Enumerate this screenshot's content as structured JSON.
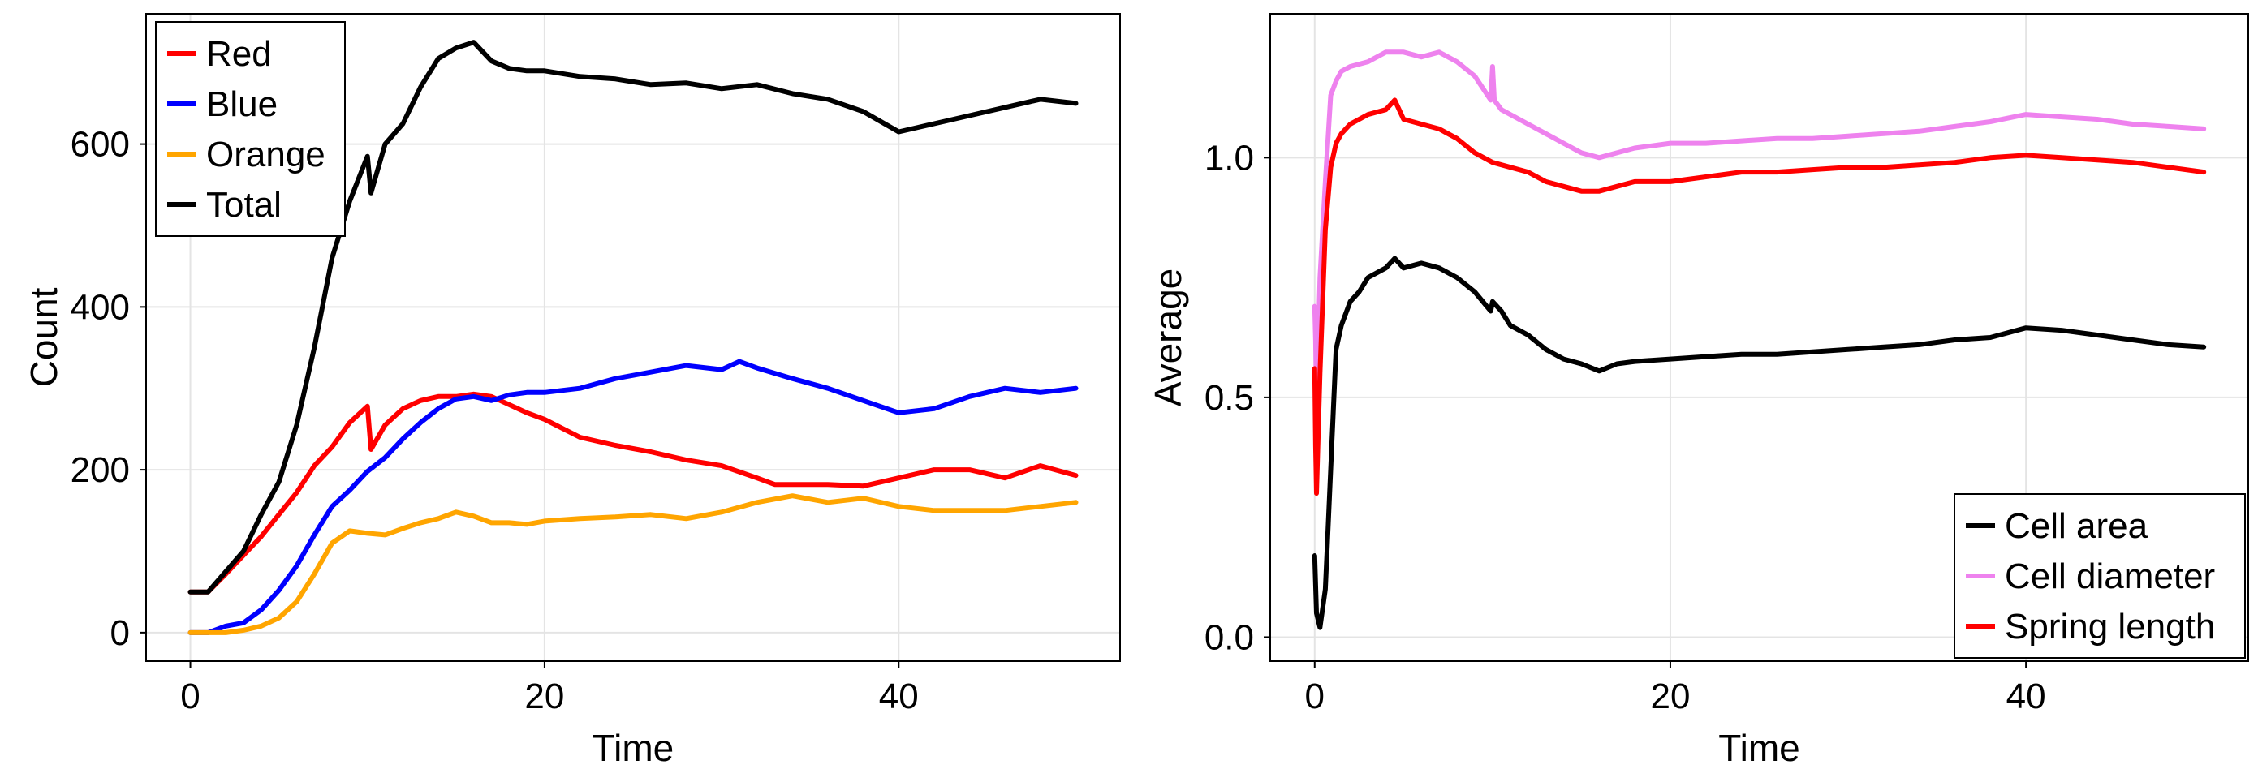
{
  "chart_data": [
    {
      "type": "line",
      "title": "",
      "xlabel": "Time",
      "ylabel": "Count",
      "xlim": [
        -2.5,
        52.5
      ],
      "ylim": [
        -35,
        760
      ],
      "xticks": [
        0,
        20,
        40
      ],
      "xtick_labels": [
        "0",
        "20",
        "40"
      ],
      "yticks": [
        0,
        200,
        400,
        600
      ],
      "ytick_labels": [
        "0",
        "200",
        "400",
        "600"
      ],
      "grid": true,
      "legend_position": "top-left",
      "series": [
        {
          "name": "Red",
          "color": "#ff0000",
          "x": [
            0,
            1,
            2,
            3,
            4,
            5,
            6,
            7,
            8,
            9,
            10,
            10.2,
            11,
            12,
            13,
            14,
            15,
            16,
            17,
            18,
            19,
            20,
            22,
            24,
            26,
            28,
            30,
            32,
            33,
            34,
            36,
            38,
            40,
            42,
            44,
            46,
            48,
            50
          ],
          "y": [
            50,
            50,
            72,
            95,
            118,
            145,
            172,
            205,
            228,
            258,
            278,
            225,
            255,
            275,
            285,
            290,
            290,
            293,
            290,
            280,
            270,
            262,
            240,
            230,
            222,
            212,
            205,
            190,
            182,
            182,
            182,
            180,
            190,
            200,
            200,
            190,
            205,
            193
          ]
        },
        {
          "name": "Blue",
          "color": "#0000ff",
          "x": [
            0,
            1,
            2,
            3,
            4,
            5,
            6,
            7,
            8,
            9,
            10,
            11,
            12,
            13,
            14,
            15,
            16,
            17,
            18,
            19,
            20,
            22,
            24,
            26,
            28,
            30,
            31,
            32,
            34,
            36,
            38,
            40,
            42,
            44,
            46,
            48,
            50
          ],
          "y": [
            0,
            0,
            8,
            12,
            28,
            52,
            82,
            120,
            155,
            175,
            198,
            215,
            238,
            258,
            275,
            287,
            290,
            285,
            292,
            295,
            295,
            300,
            312,
            320,
            328,
            323,
            333,
            325,
            312,
            300,
            285,
            270,
            275,
            290,
            300,
            295,
            300
          ]
        },
        {
          "name": "Orange",
          "color": "#ffa500",
          "x": [
            0,
            1,
            2,
            3,
            4,
            5,
            6,
            7,
            8,
            9,
            10,
            11,
            12,
            13,
            14,
            15,
            16,
            17,
            18,
            19,
            20,
            22,
            24,
            26,
            28,
            30,
            32,
            34,
            36,
            38,
            40,
            42,
            44,
            46,
            48,
            50
          ],
          "y": [
            0,
            0,
            0,
            3,
            8,
            18,
            38,
            72,
            110,
            125,
            122,
            120,
            128,
            135,
            140,
            148,
            143,
            135,
            135,
            133,
            137,
            140,
            142,
            145,
            140,
            148,
            160,
            168,
            160,
            165,
            155,
            150,
            150,
            150,
            155,
            160
          ]
        },
        {
          "name": "Total",
          "color": "#000000",
          "x": [
            0,
            1,
            2,
            3,
            4,
            5,
            6,
            7,
            8,
            9,
            10,
            10.2,
            11,
            12,
            13,
            14,
            15,
            16,
            17,
            18,
            19,
            20,
            22,
            24,
            26,
            28,
            30,
            32,
            34,
            36,
            38,
            40,
            41,
            42,
            44,
            46,
            48,
            50
          ],
          "y": [
            50,
            50,
            75,
            100,
            145,
            185,
            255,
            350,
            460,
            530,
            585,
            540,
            600,
            625,
            670,
            705,
            718,
            725,
            702,
            693,
            690,
            690,
            683,
            680,
            673,
            675,
            668,
            673,
            662,
            655,
            640,
            615,
            620,
            625,
            635,
            645,
            655,
            650
          ]
        }
      ]
    },
    {
      "type": "line",
      "title": "",
      "xlabel": "Time",
      "ylabel": "Average",
      "xlim": [
        -2.5,
        52.5
      ],
      "ylim": [
        -0.05,
        1.3
      ],
      "xticks": [
        0,
        20,
        40
      ],
      "xtick_labels": [
        "0",
        "20",
        "40"
      ],
      "yticks": [
        0.0,
        0.5,
        1.0
      ],
      "ytick_labels": [
        "0.0",
        "0.5",
        "1.0"
      ],
      "grid": true,
      "legend_position": "bottom-right",
      "series": [
        {
          "name": "Cell area",
          "color": "#000000",
          "x": [
            0,
            0.1,
            0.3,
            0.6,
            0.9,
            1.2,
            1.5,
            2,
            2.5,
            3,
            3.5,
            4,
            4.5,
            5,
            6,
            7,
            8,
            9,
            9.9,
            10,
            10.5,
            11,
            12,
            13,
            14,
            15,
            16,
            17,
            18,
            20,
            22,
            24,
            26,
            28,
            30,
            32,
            34,
            36,
            38,
            40,
            42,
            44,
            46,
            48,
            50
          ],
          "y": [
            0.17,
            0.05,
            0.02,
            0.1,
            0.35,
            0.6,
            0.65,
            0.7,
            0.72,
            0.75,
            0.76,
            0.77,
            0.79,
            0.77,
            0.78,
            0.77,
            0.75,
            0.72,
            0.68,
            0.7,
            0.68,
            0.65,
            0.63,
            0.6,
            0.58,
            0.57,
            0.555,
            0.57,
            0.575,
            0.58,
            0.585,
            0.59,
            0.59,
            0.595,
            0.6,
            0.605,
            0.61,
            0.62,
            0.625,
            0.645,
            0.64,
            0.63,
            0.62,
            0.61,
            0.605
          ]
        },
        {
          "name": "Cell diameter",
          "color": "#ee82ee",
          "x": [
            0,
            0.05,
            0.1,
            0.3,
            0.6,
            0.9,
            1.2,
            1.5,
            2,
            3,
            4,
            5,
            6,
            7,
            8,
            9,
            9.9,
            10,
            10.1,
            10.5,
            11,
            12,
            13,
            14,
            15,
            16,
            17,
            18,
            20,
            22,
            24,
            26,
            28,
            30,
            32,
            34,
            36,
            38,
            40,
            42,
            44,
            46,
            48,
            50
          ],
          "y": [
            0.69,
            0.62,
            0.48,
            0.75,
            0.95,
            1.13,
            1.16,
            1.18,
            1.19,
            1.2,
            1.22,
            1.22,
            1.21,
            1.22,
            1.2,
            1.17,
            1.12,
            1.19,
            1.12,
            1.1,
            1.09,
            1.07,
            1.05,
            1.03,
            1.01,
            1.0,
            1.01,
            1.02,
            1.03,
            1.03,
            1.035,
            1.04,
            1.04,
            1.045,
            1.05,
            1.055,
            1.065,
            1.075,
            1.09,
            1.085,
            1.08,
            1.07,
            1.065,
            1.06
          ]
        },
        {
          "name": "Spring length",
          "color": "#ff0000",
          "x": [
            0,
            0.05,
            0.1,
            0.3,
            0.6,
            0.9,
            1.2,
            1.5,
            2,
            3,
            4,
            4.5,
            5,
            6,
            7,
            8,
            9,
            10,
            11,
            12,
            13,
            14,
            15,
            16,
            18,
            20,
            22,
            24,
            26,
            28,
            30,
            32,
            34,
            36,
            38,
            40,
            42,
            44,
            46,
            48,
            50
          ],
          "y": [
            0.56,
            0.4,
            0.3,
            0.55,
            0.85,
            0.98,
            1.03,
            1.05,
            1.07,
            1.09,
            1.1,
            1.12,
            1.08,
            1.07,
            1.06,
            1.04,
            1.01,
            0.99,
            0.98,
            0.97,
            0.95,
            0.94,
            0.93,
            0.93,
            0.95,
            0.95,
            0.96,
            0.97,
            0.97,
            0.975,
            0.98,
            0.98,
            0.985,
            0.99,
            1.0,
            1.005,
            1.0,
            0.995,
            0.99,
            0.98,
            0.97
          ]
        }
      ]
    }
  ]
}
